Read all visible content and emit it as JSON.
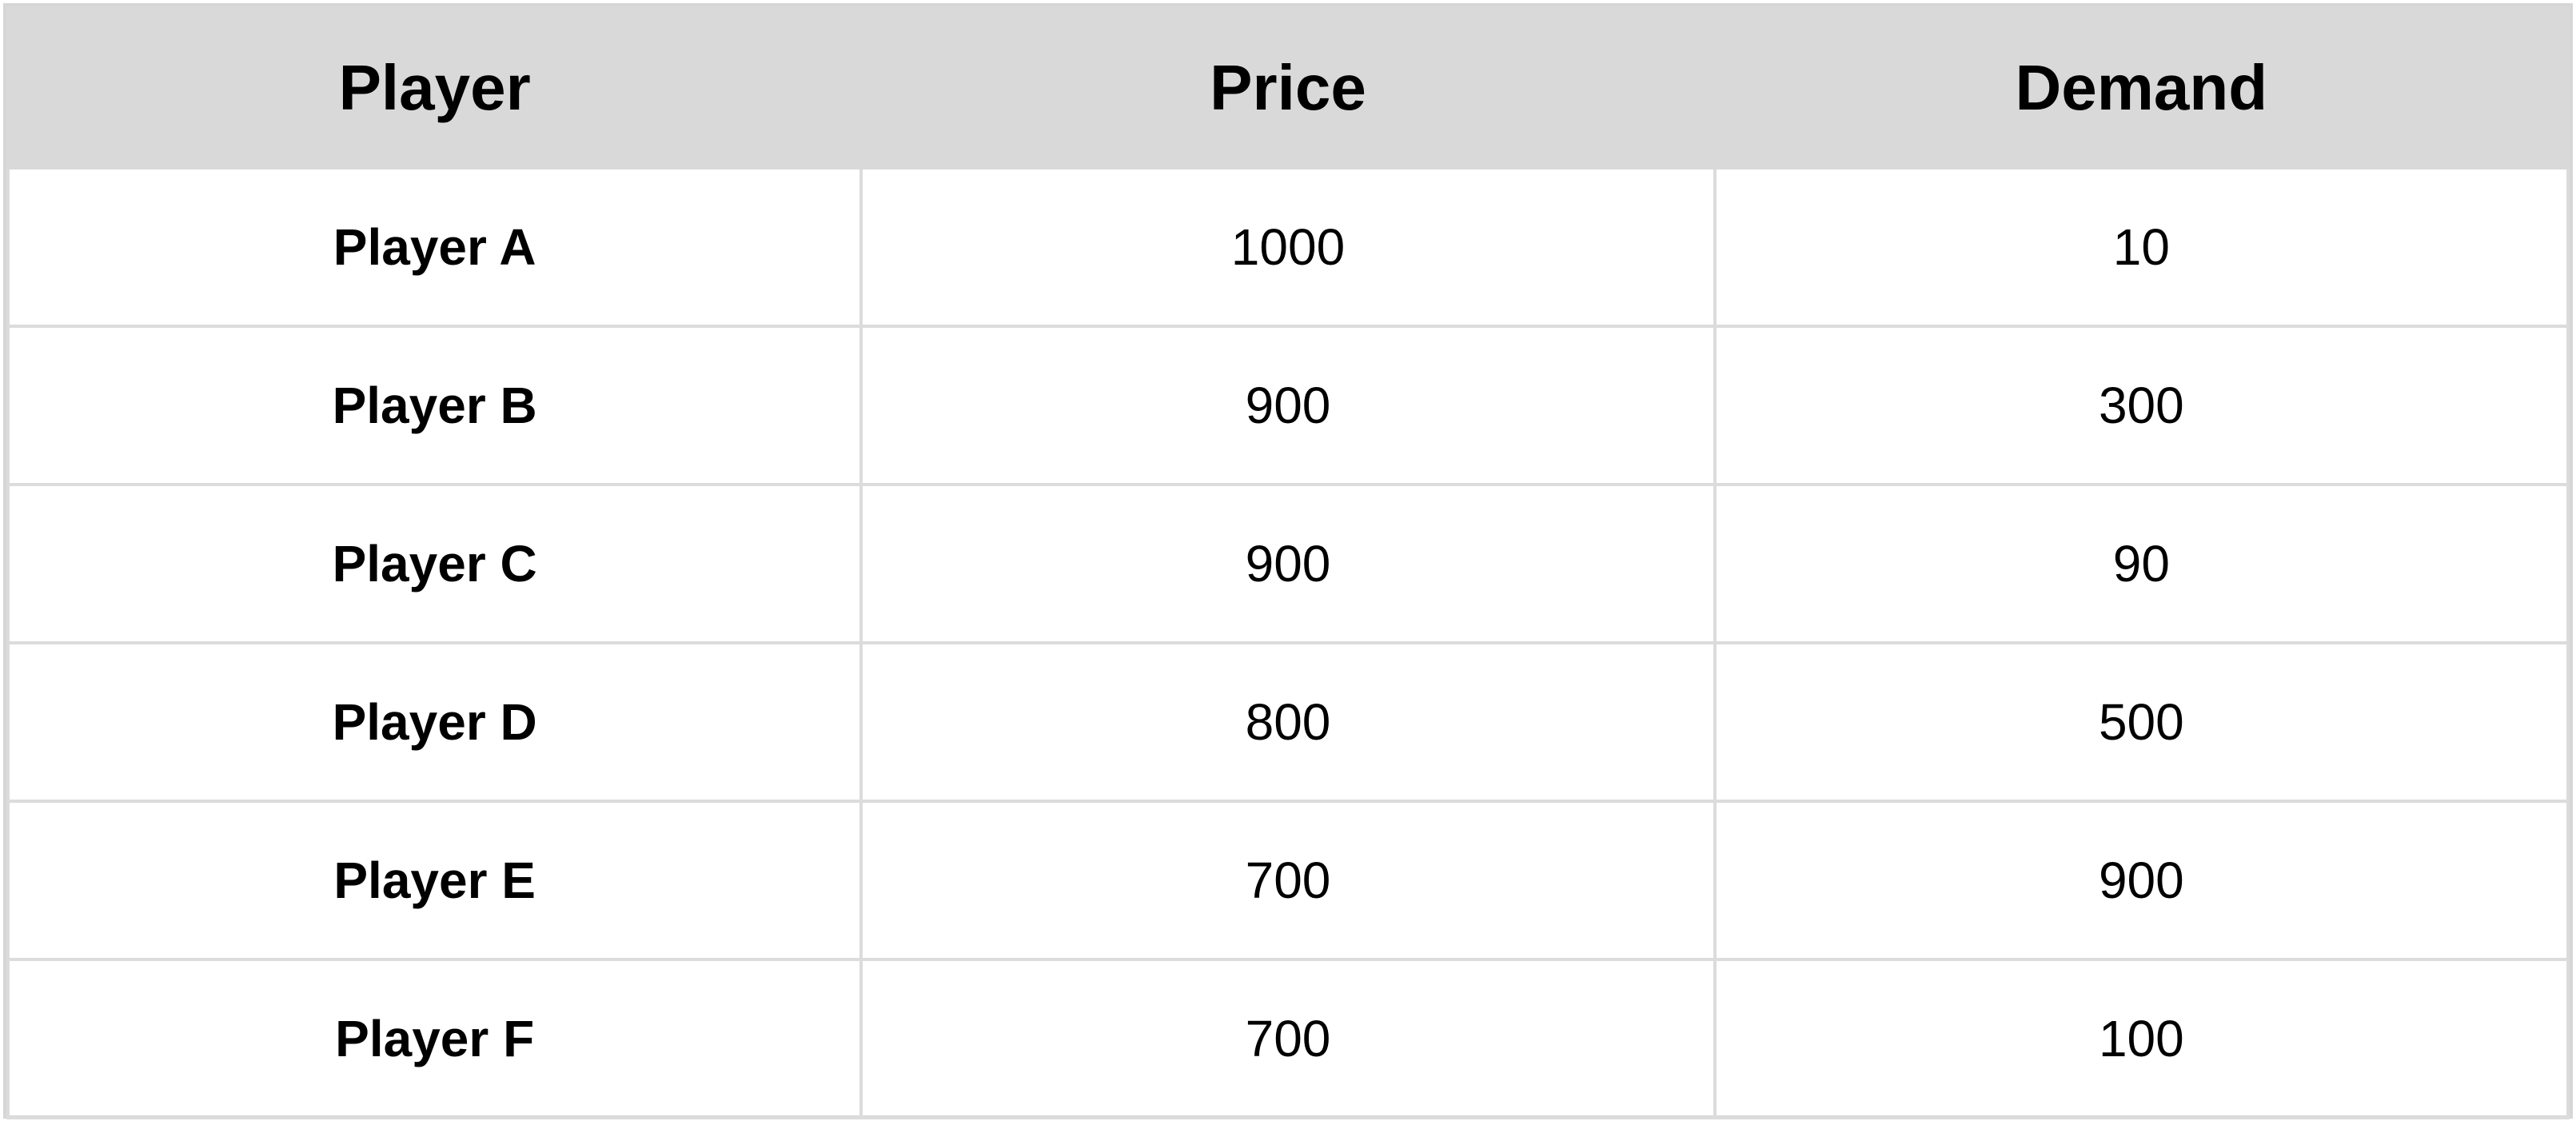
{
  "table": {
    "headers": [
      "Player",
      "Price",
      "Demand"
    ],
    "rows": [
      {
        "player": "Player A",
        "price": "1000",
        "demand": "10"
      },
      {
        "player": "Player B",
        "price": "900",
        "demand": "300"
      },
      {
        "player": "Player C",
        "price": "900",
        "demand": "90"
      },
      {
        "player": "Player D",
        "price": "800",
        "demand": "500"
      },
      {
        "player": "Player E",
        "price": "700",
        "demand": "900"
      },
      {
        "player": "Player F",
        "price": "700",
        "demand": "100"
      }
    ]
  },
  "colors": {
    "header_bg": "#d9d9d9",
    "grid_line": "#dcdcdc",
    "text": "#000000"
  }
}
